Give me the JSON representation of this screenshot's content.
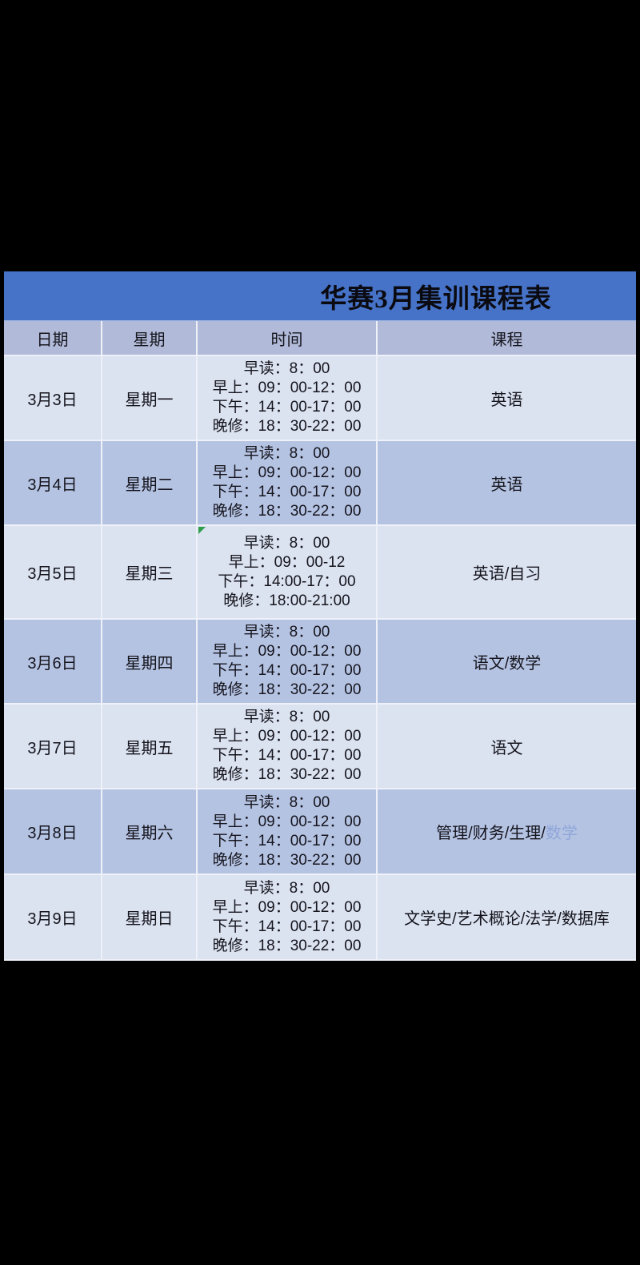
{
  "title": "华赛3月集训课程表",
  "columns": {
    "date": "日期",
    "weekday": "星期",
    "time": "时间",
    "course": "课程"
  },
  "rows": [
    {
      "date": "3月3日",
      "weekday": "星期一",
      "times": [
        "早读：8：00",
        "早上：09：00-12：00",
        "下午：14：00-17：00",
        "晚修：18：30-22：00"
      ],
      "course": "英语"
    },
    {
      "date": "3月4日",
      "weekday": "星期二",
      "times": [
        "早读：8：00",
        "早上：09：00-12：00",
        "下午：14：00-17：00",
        "晚修：18：30-22：00"
      ],
      "course": "英语"
    },
    {
      "date": "3月5日",
      "weekday": "星期三",
      "times": [
        "早读：8：00",
        "早上：09：00-12",
        "下午：14:00-17：00",
        "晚修：18:00-21:00"
      ],
      "course": "英语/自习"
    },
    {
      "date": "3月6日",
      "weekday": "星期四",
      "times": [
        "早读：8：00",
        "早上：09：00-12：00",
        "下午：14：00-17：00",
        "晚修：18：30-22：00"
      ],
      "course": "语文/数学"
    },
    {
      "date": "3月7日",
      "weekday": "星期五",
      "times": [
        "早读：8：00",
        "早上：09：00-12：00",
        "下午：14：00-17：00",
        "晚修：18：30-22：00"
      ],
      "course": "语文"
    },
    {
      "date": "3月8日",
      "weekday": "星期六",
      "times": [
        "早读：8：00",
        "早上：09：00-12：00",
        "下午：14：00-17：00",
        "晚修：18：30-22：00"
      ],
      "course_dark": "管理/财务/生理/",
      "course_light": "数学"
    },
    {
      "date": "3月9日",
      "weekday": "星期日",
      "times": [
        "早读：8：00",
        "早上：09：00-12：00",
        "下午：14：00-17：00",
        "晚修：18：30-22：00"
      ],
      "course": "文学史/艺术概论/法学/数据库"
    }
  ],
  "colors": {
    "page_bg": "#000000",
    "title_bar": "#4673c8",
    "header_bg": "#b1bad8",
    "row_light": "#dbe2f0",
    "row_dark": "#b5c3e3",
    "text_dark": "#15151d",
    "course_link": "#8ea6d9",
    "flag_green": "#2f9e49",
    "grid_line": "#eef1f8"
  }
}
